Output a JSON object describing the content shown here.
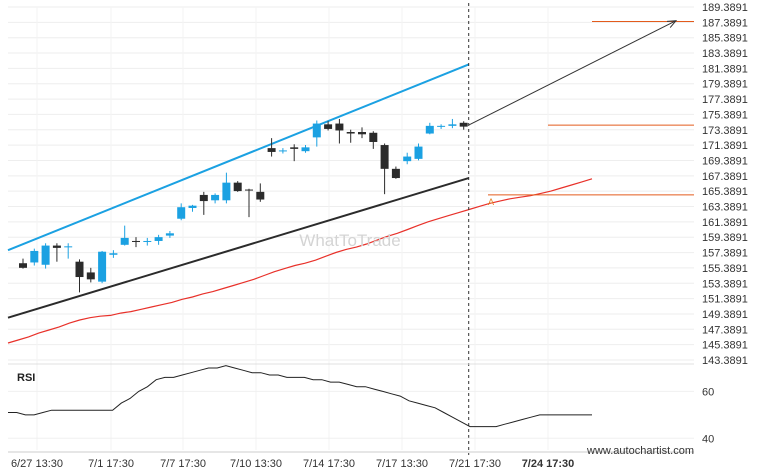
{
  "chart_data": {
    "type": "candlestick",
    "ylim": [
      143.3891,
      189.3891
    ],
    "y_ticks": [
      "189.3891",
      "187.3891",
      "185.3891",
      "183.3891",
      "181.3891",
      "179.3891",
      "177.3891",
      "175.3891",
      "173.3891",
      "171.3891",
      "169.3891",
      "167.3891",
      "165.3891",
      "163.3891",
      "161.3891",
      "159.3891",
      "157.3891",
      "155.3891",
      "153.3891",
      "151.3891",
      "149.3891",
      "147.3891",
      "145.3891",
      "143.3891"
    ],
    "x_ticks": [
      "6/27 13:30",
      "7/1 17:30",
      "7/7 17:30",
      "7/10 13:30",
      "7/14 17:30",
      "7/17 13:30",
      "7/21 17:30",
      "7/24 17:30"
    ],
    "highlight_x_tick": "7/24 17:30",
    "candles": [
      {
        "o": 156.0,
        "h": 156.6,
        "l": 155.3,
        "c": 155.4
      },
      {
        "o": 156.1,
        "h": 157.9,
        "l": 155.7,
        "c": 157.6
      },
      {
        "o": 155.8,
        "h": 158.6,
        "l": 155.3,
        "c": 158.3
      },
      {
        "o": 158.3,
        "h": 158.6,
        "l": 156.2,
        "c": 158.0
      },
      {
        "o": 158.1,
        "h": 158.6,
        "l": 156.6,
        "c": 158.2
      },
      {
        "o": 156.2,
        "h": 156.5,
        "l": 152.2,
        "c": 154.2
      },
      {
        "o": 154.8,
        "h": 155.4,
        "l": 153.5,
        "c": 153.9
      },
      {
        "o": 153.6,
        "h": 157.6,
        "l": 153.4,
        "c": 157.5
      },
      {
        "o": 157.1,
        "h": 157.7,
        "l": 156.7,
        "c": 157.3
      },
      {
        "o": 158.4,
        "h": 160.9,
        "l": 158.3,
        "c": 159.3
      },
      {
        "o": 158.9,
        "h": 159.4,
        "l": 158.1,
        "c": 158.8
      },
      {
        "o": 158.8,
        "h": 159.3,
        "l": 158.3,
        "c": 158.9
      },
      {
        "o": 158.9,
        "h": 159.7,
        "l": 158.4,
        "c": 159.4
      },
      {
        "o": 159.6,
        "h": 160.2,
        "l": 159.3,
        "c": 159.9
      },
      {
        "o": 161.8,
        "h": 163.8,
        "l": 161.6,
        "c": 163.3
      },
      {
        "o": 163.2,
        "h": 163.6,
        "l": 162.7,
        "c": 163.5
      },
      {
        "o": 164.9,
        "h": 165.3,
        "l": 162.3,
        "c": 164.1
      },
      {
        "o": 164.2,
        "h": 165.1,
        "l": 163.8,
        "c": 164.9
      },
      {
        "o": 164.2,
        "h": 167.8,
        "l": 163.8,
        "c": 166.5
      },
      {
        "o": 166.5,
        "h": 166.7,
        "l": 165.3,
        "c": 165.4
      },
      {
        "o": 165.6,
        "h": 165.7,
        "l": 162.0,
        "c": 165.5
      },
      {
        "o": 165.3,
        "h": 166.4,
        "l": 164.0,
        "c": 164.3
      },
      {
        "o": 171.0,
        "h": 172.3,
        "l": 169.9,
        "c": 170.5
      },
      {
        "o": 170.6,
        "h": 171.0,
        "l": 170.3,
        "c": 170.7
      },
      {
        "o": 171.1,
        "h": 171.5,
        "l": 169.3,
        "c": 170.9
      },
      {
        "o": 170.6,
        "h": 171.4,
        "l": 170.4,
        "c": 171.1
      },
      {
        "o": 172.4,
        "h": 174.6,
        "l": 171.2,
        "c": 174.2
      },
      {
        "o": 174.1,
        "h": 174.5,
        "l": 173.3,
        "c": 173.5
      },
      {
        "o": 174.2,
        "h": 174.8,
        "l": 171.6,
        "c": 173.3
      },
      {
        "o": 173.1,
        "h": 173.4,
        "l": 171.7,
        "c": 172.9
      },
      {
        "o": 173.1,
        "h": 173.7,
        "l": 172.3,
        "c": 172.8
      },
      {
        "o": 173.0,
        "h": 173.2,
        "l": 170.9,
        "c": 171.8
      },
      {
        "o": 171.4,
        "h": 171.6,
        "l": 165.0,
        "c": 168.3
      },
      {
        "o": 168.3,
        "h": 168.6,
        "l": 167.0,
        "c": 167.1
      },
      {
        "o": 169.3,
        "h": 170.4,
        "l": 168.9,
        "c": 169.9
      },
      {
        "o": 169.6,
        "h": 171.6,
        "l": 169.4,
        "c": 171.2
      },
      {
        "o": 172.9,
        "h": 174.3,
        "l": 172.8,
        "c": 173.9
      },
      {
        "o": 173.8,
        "h": 174.1,
        "l": 173.5,
        "c": 173.9
      },
      {
        "o": 173.9,
        "h": 174.8,
        "l": 173.6,
        "c": 174.1
      },
      {
        "o": 174.3,
        "h": 174.5,
        "l": 173.4,
        "c": 173.8
      }
    ],
    "moving_average": [
      145.6,
      146.0,
      146.4,
      146.9,
      147.3,
      147.7,
      148.2,
      148.6,
      148.9,
      149.1,
      149.2,
      149.5,
      149.7,
      150.0,
      150.3,
      150.6,
      150.9,
      151.3,
      151.6,
      152.0,
      152.3,
      152.7,
      153.1,
      153.5,
      153.9,
      154.4,
      154.9,
      155.3,
      155.7,
      156.0,
      156.4,
      156.9,
      157.4,
      157.8,
      158.1,
      158.5,
      159.0,
      159.5,
      159.9,
      160.4,
      160.9,
      161.4,
      161.8,
      162.2,
      162.6,
      163.0,
      163.4,
      163.8,
      164.1,
      164.4,
      164.6,
      164.8,
      165.1,
      165.4,
      165.8,
      166.2,
      166.6,
      167.0
    ],
    "channel_upper": {
      "x0": 0,
      "y0": 157.7,
      "x1": 39,
      "y1": 181.9
    },
    "channel_lower": {
      "x0": 0,
      "y0": 148.9,
      "x1": 39,
      "y1": 167.1
    },
    "resistance_level": 187.5,
    "current_level": 174.0,
    "support_level": 164.9,
    "projection": {
      "from": 174.0,
      "to": 187.5
    },
    "marker_label": "A",
    "rsi": {
      "label": "RSI",
      "ticks": [
        "60",
        "40"
      ],
      "ylim": [
        35,
        70
      ],
      "values": [
        51,
        51,
        50,
        50,
        51,
        52,
        52,
        52,
        52,
        52,
        52,
        52,
        52,
        55,
        57,
        60,
        62,
        65,
        66,
        66,
        67,
        68,
        69,
        70,
        70,
        71,
        70,
        69,
        68,
        68,
        67,
        67,
        66,
        66,
        66,
        65,
        65,
        64,
        64,
        63,
        62,
        62,
        61,
        60,
        59,
        58,
        56,
        55,
        54,
        53,
        51,
        49,
        47,
        45,
        45,
        45,
        45,
        46,
        47,
        48,
        49,
        50,
        50,
        50,
        50,
        50,
        50,
        50
      ]
    }
  },
  "watermark": "WhatToTrade",
  "source": "www.autochartist.com",
  "colors": {
    "bull": "#1ba1e2",
    "bear": "#2b2b2b",
    "ma": "#e8312a",
    "channel_upper": "#1ba1e2",
    "channel_lower": "#2b2b2b",
    "level": "#e35b1c",
    "projection": "#333333",
    "rsi": "#222222"
  }
}
